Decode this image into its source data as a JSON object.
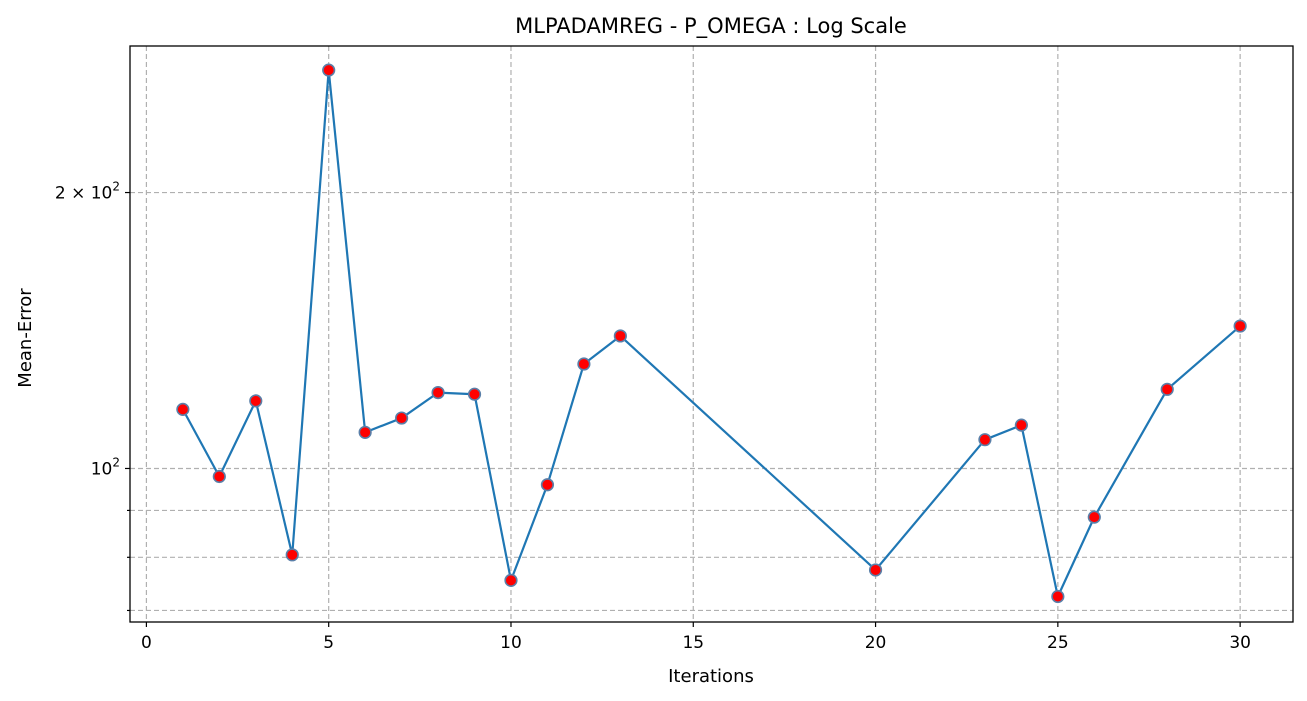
{
  "chart_data": {
    "type": "line",
    "title": "MLPADAMREG - P_OMEGA : Log Scale",
    "xlabel": "Iterations",
    "ylabel": "Mean-Error",
    "xscale": "linear",
    "yscale": "log",
    "xlim": [
      -0.45,
      31.45
    ],
    "ylim": [
      68.0,
      289.0
    ],
    "grid": true,
    "x_ticks": [
      0,
      5,
      10,
      15,
      20,
      25,
      30
    ],
    "x_tick_labels": [
      "0",
      "5",
      "10",
      "15",
      "20",
      "25",
      "30"
    ],
    "y_major_ticks": [
      100,
      200
    ],
    "y_major_tick_labels": [
      "10",
      "2 × 10"
    ],
    "y_tick_exponent": "2",
    "y_minor_ticks": [
      70,
      80,
      90
    ],
    "series": [
      {
        "line_color": "#1f77b4",
        "marker_face_color": "#ff0000",
        "marker_edge_color": "#5a7fa8",
        "x": [
          1,
          2,
          3,
          4,
          5,
          6,
          7,
          8,
          9,
          10,
          11,
          12,
          13,
          20,
          23,
          24,
          25,
          26,
          28,
          30
        ],
        "y": [
          116,
          98,
          118.5,
          80.5,
          272,
          109.5,
          113.5,
          121,
          120.5,
          75.5,
          96,
          130,
          139.5,
          77.5,
          107.5,
          111.5,
          72.5,
          88.5,
          122,
          143
        ]
      }
    ]
  }
}
